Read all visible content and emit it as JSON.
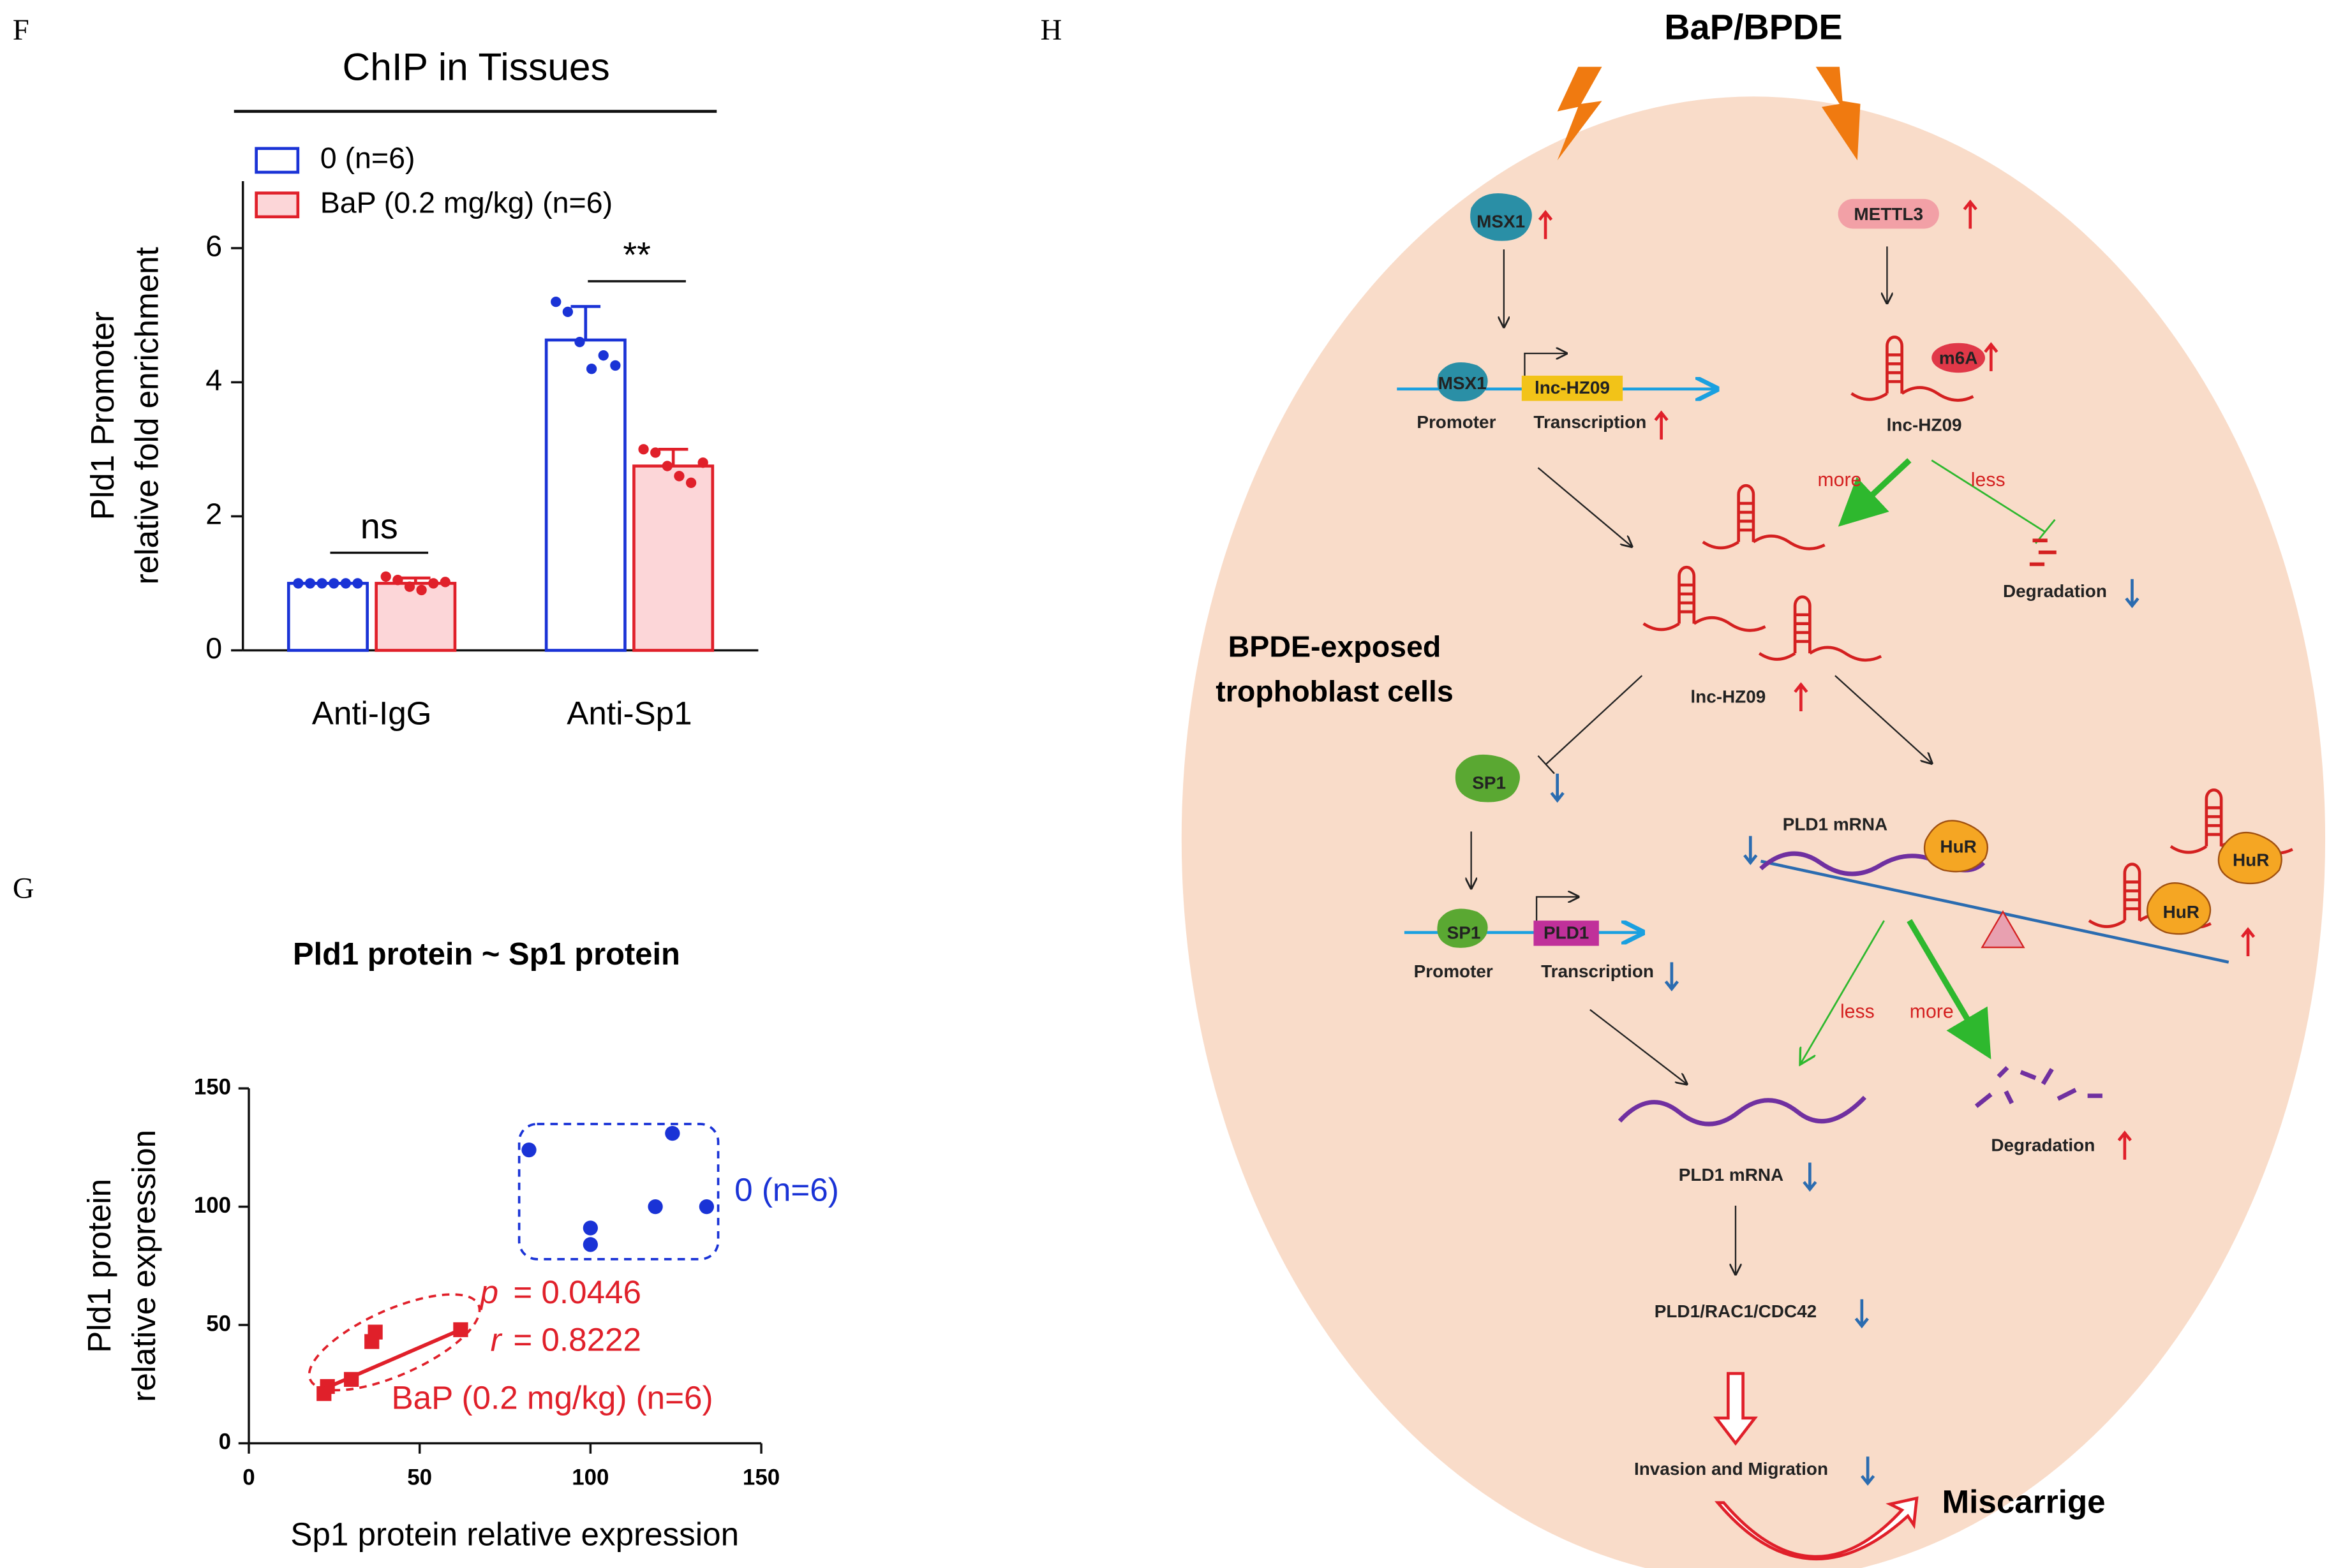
{
  "chart_data": [
    {
      "type": "bar",
      "panel": "F",
      "title": "ChIP in Tissues",
      "ylabel": [
        "Pld1 Promoter",
        "relative fold enrichment"
      ],
      "categories": [
        "Anti-IgG",
        "Anti-Sp1"
      ],
      "series": [
        {
          "name": "0 (n=6)",
          "color": "#1a33d6",
          "fill": "#ffffff",
          "values": [
            1,
            4.63
          ],
          "errors": [
            0,
            0.5
          ],
          "points": [
            [
              1,
              1,
              1,
              1,
              1,
              1
            ],
            [
              5.2,
              5.05,
              4.6,
              4.2,
              4.4,
              4.25
            ]
          ]
        },
        {
          "name": "BaP (0.2 mg/kg) (n=6)",
          "color": "#e0202a",
          "fill": "#fcd6d8",
          "values": [
            1,
            2.75
          ],
          "errors": [
            0.08,
            0.25
          ],
          "points": [
            [
              1.1,
              1.05,
              0.95,
              0.9,
              1.0,
              1.02
            ],
            [
              3.0,
              2.95,
              2.75,
              2.6,
              2.5,
              2.8
            ]
          ]
        }
      ],
      "significance": [
        "ns",
        "**"
      ],
      "ylim": [
        0,
        7
      ],
      "yticks": [
        0,
        2,
        4,
        6
      ]
    },
    {
      "type": "scatter",
      "panel": "G",
      "title": "Pld1 protein ~ Sp1 protein",
      "xlabel": "Sp1  protein relative expression",
      "ylabel": [
        "Pld1  protein",
        "relative expression"
      ],
      "series": [
        {
          "name": "0 (n=6)",
          "color": "#1a33d6",
          "marker": "circle",
          "x": [
            82,
            124,
            100,
            100,
            119,
            134
          ],
          "y": [
            124,
            131,
            91,
            84,
            100,
            100
          ]
        },
        {
          "name": "BaP (0.2 mg/kg) (n=6)",
          "color": "#e0202a",
          "marker": "square",
          "x": [
            22,
            23,
            30,
            36,
            37,
            62
          ],
          "y": [
            21,
            24,
            27,
            43,
            47,
            48
          ],
          "fit": {
            "x": [
              22,
              62
            ],
            "y": [
              23,
              48
            ]
          }
        }
      ],
      "stats": [
        {
          "symbol": "p",
          "value": "= 0.0446"
        },
        {
          "symbol": "r",
          "value": "= 0.8222"
        }
      ],
      "xlim": [
        0,
        150
      ],
      "xticks": [
        0,
        50,
        100,
        150
      ],
      "ylim": [
        0,
        150
      ],
      "yticks": [
        0,
        50,
        100,
        150
      ]
    }
  ],
  "diagram": {
    "panel": "H",
    "title": "BaP/BPDE",
    "labels": [
      "MSX1",
      "METTL3",
      "MSX1",
      "lnc-HZ09",
      "Promoter",
      "Transcription",
      "m6A",
      "lnc-HZ09",
      "more",
      "less",
      "Degradation",
      "BPDE-exposed",
      "trophoblast cells",
      "lnc-HZ09",
      "SP1",
      "PLD1 mRNA",
      "HuR",
      "HuR",
      "HuR",
      "SP1",
      "PLD1",
      "Promoter",
      "Transcription",
      "less",
      "more",
      "PLD1 mRNA",
      "Degradation",
      "PLD1/RAC1/CDC42",
      "Invasion and Migration",
      "Miscarrige"
    ]
  }
}
